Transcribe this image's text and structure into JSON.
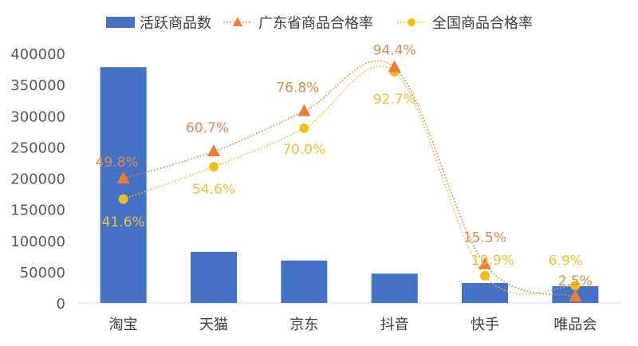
{
  "chart_data": {
    "type": "bar",
    "title": "",
    "categories": [
      "淘宝",
      "天猫",
      "京东",
      "抖音",
      "快手",
      "唯品会"
    ],
    "ylim": [
      0,
      400000
    ],
    "yticks": [
      "0",
      "50000",
      "100000",
      "150000",
      "200000",
      "250000",
      "300000",
      "350000",
      "400000"
    ],
    "y2lim": [
      0,
      100
    ],
    "legend_position": "top",
    "series": [
      {
        "name": "活跃商品数",
        "type": "bar",
        "color": "#4472c4",
        "values": [
          378000,
          82000,
          68000,
          47000,
          32000,
          27000
        ]
      },
      {
        "name": "广东省商品合格率",
        "type": "line",
        "marker": "triangle",
        "color": "#ed7d31",
        "label_color": "#d98a4e",
        "unit": "%",
        "values": [
          49.8,
          60.7,
          76.8,
          94.4,
          15.5,
          2.5
        ],
        "labels": [
          "49.8%",
          "60.7%",
          "76.8%",
          "94.4%",
          "15.5%",
          "2.5%"
        ]
      },
      {
        "name": "全国商品合格率",
        "type": "line",
        "marker": "circle",
        "color": "#f2bd1b",
        "label_color": "#eec13a",
        "unit": "%",
        "values": [
          41.6,
          54.6,
          70.0,
          92.7,
          10.9,
          6.9
        ],
        "labels": [
          "41.6%",
          "54.6%",
          "70.0%",
          "92.7%",
          "10.9%",
          "6.9%"
        ]
      }
    ]
  }
}
